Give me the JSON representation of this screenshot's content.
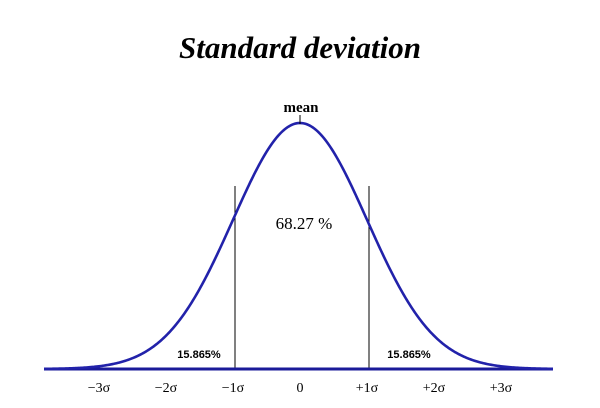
{
  "title": "Standard deviation",
  "mean_label": "mean",
  "center_percent_label": "68.27 %",
  "tail_left_label": "15.865%",
  "tail_right_label": "15.865%",
  "colors": {
    "curve": "#2222aa",
    "baseline": "#1a1a99",
    "text": "#000000",
    "guide_lines": "#000000"
  },
  "chart_data": {
    "type": "line",
    "title": "Standard deviation",
    "distribution": "normal",
    "mean": 0,
    "std": 1,
    "xlim": [
      -3.6,
      3.6
    ],
    "ticks": [
      {
        "value": -3,
        "label": "−3σ"
      },
      {
        "value": -2,
        "label": "−2σ"
      },
      {
        "value": -1,
        "label": "−1σ"
      },
      {
        "value": 0,
        "label": "0"
      },
      {
        "value": 1,
        "label": "+1σ"
      },
      {
        "value": 2,
        "label": "+2σ"
      },
      {
        "value": 3,
        "label": "+3σ"
      }
    ],
    "sigma_lines": [
      -1,
      1
    ],
    "annotations": [
      {
        "text": "mean",
        "at": 0
      },
      {
        "text": "68.27 %",
        "region": [
          -1,
          1
        ]
      },
      {
        "text": "15.865%",
        "region": "left-tail"
      },
      {
        "text": "15.865%",
        "region": "right-tail"
      }
    ],
    "grid": false,
    "legend": "none"
  }
}
